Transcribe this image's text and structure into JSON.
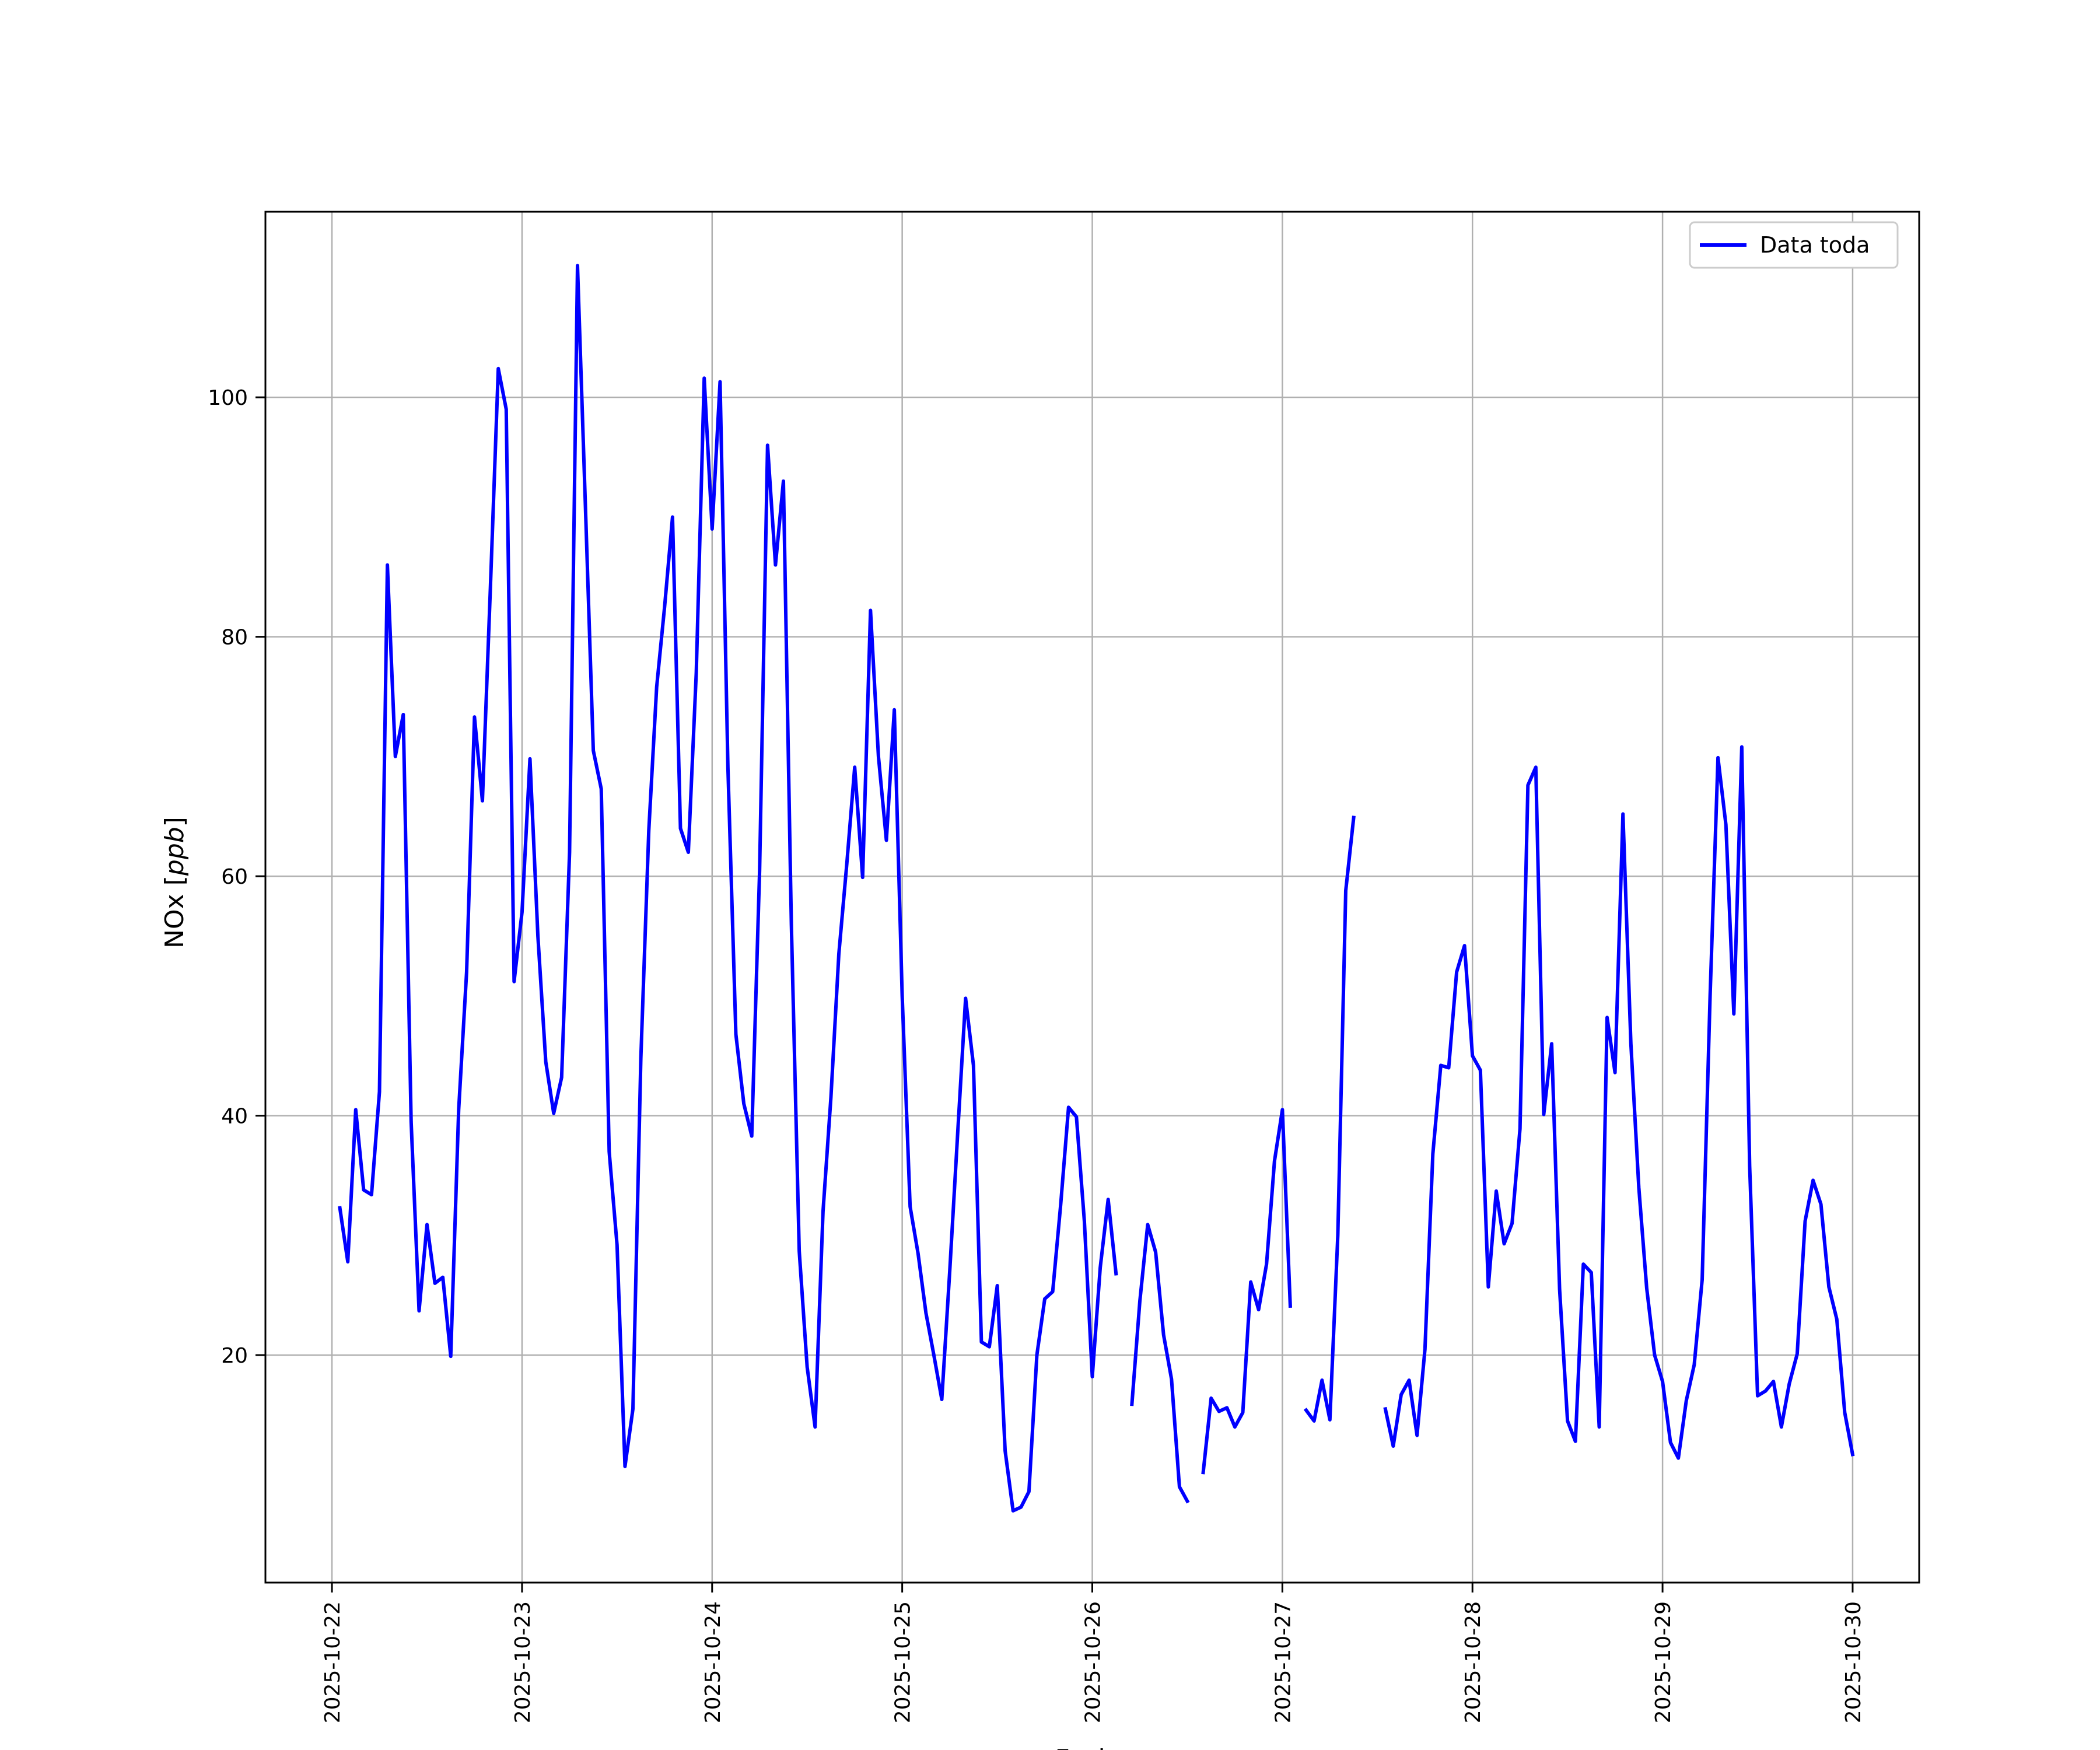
{
  "chart_data": {
    "type": "line",
    "xlabel": "Fecha",
    "ylabel": "NOx [ppb]",
    "ylabel_main": "NOx ",
    "ylabel_unit": "ppb",
    "xlim": [
      "2025-10-21 15:36",
      "2025-10-30 08:24"
    ],
    "ylim": [
      1,
      115.5
    ],
    "x_ticks": [
      "2025-10-22",
      "2025-10-23",
      "2025-10-24",
      "2025-10-25",
      "2025-10-26",
      "2025-10-27",
      "2025-10-28",
      "2025-10-29",
      "2025-10-30"
    ],
    "y_ticks": [
      20,
      40,
      60,
      80,
      100
    ],
    "y_tick_labels": [
      "20",
      "40",
      "60",
      "80",
      "100"
    ],
    "grid": true,
    "legend_position": "top-right",
    "series": [
      {
        "name": "Data toda",
        "color": "#0000ff",
        "segments": [
          [
            [
              "2025-10-22 01:00",
              32.3
            ],
            [
              "2025-10-22 02:00",
              27.8
            ],
            [
              "2025-10-22 03:00",
              40.5
            ],
            [
              "2025-10-22 04:00",
              33.8
            ],
            [
              "2025-10-22 05:00",
              33.4
            ],
            [
              "2025-10-22 06:00",
              42.0
            ],
            [
              "2025-10-22 07:00",
              86.0
            ],
            [
              "2025-10-22 08:00",
              70.0
            ],
            [
              "2025-10-22 09:00",
              73.5
            ],
            [
              "2025-10-22 10:00",
              39.5
            ],
            [
              "2025-10-22 11:00",
              23.7
            ],
            [
              "2025-10-22 12:00",
              30.9
            ],
            [
              "2025-10-22 13:00",
              26.0
            ],
            [
              "2025-10-22 14:00",
              26.5
            ],
            [
              "2025-10-22 15:00",
              19.9
            ],
            [
              "2025-10-22 16:00",
              40.5
            ],
            [
              "2025-10-22 17:00",
              52.0
            ],
            [
              "2025-10-22 18:00",
              73.3
            ],
            [
              "2025-10-22 19:00",
              66.3
            ],
            [
              "2025-10-22 20:00",
              84.0
            ],
            [
              "2025-10-22 21:00",
              102.4
            ],
            [
              "2025-10-22 22:00",
              99.0
            ],
            [
              "2025-10-22 23:00",
              51.2
            ],
            [
              "2025-10-23 00:00",
              57.0
            ],
            [
              "2025-10-23 01:00",
              69.8
            ],
            [
              "2025-10-23 02:00",
              55.0
            ],
            [
              "2025-10-23 03:00",
              44.5
            ],
            [
              "2025-10-23 04:00",
              40.2
            ],
            [
              "2025-10-23 05:00",
              43.2
            ],
            [
              "2025-10-23 06:00",
              62.0
            ],
            [
              "2025-10-23 07:00",
              111.0
            ],
            [
              "2025-10-23 08:00",
              91.0
            ],
            [
              "2025-10-23 09:00",
              70.5
            ],
            [
              "2025-10-23 10:00",
              67.3
            ],
            [
              "2025-10-23 11:00",
              37.0
            ],
            [
              "2025-10-23 12:00",
              29.2
            ],
            [
              "2025-10-23 13:00",
              10.7
            ],
            [
              "2025-10-23 14:00",
              15.5
            ],
            [
              "2025-10-23 15:00",
              44.8
            ],
            [
              "2025-10-23 16:00",
              63.8
            ],
            [
              "2025-10-23 17:00",
              75.8
            ],
            [
              "2025-10-23 18:00",
              82.5
            ],
            [
              "2025-10-23 19:00",
              90.0
            ],
            [
              "2025-10-23 20:00",
              64.0
            ],
            [
              "2025-10-23 21:00",
              62.0
            ],
            [
              "2025-10-23 22:00",
              77.0
            ],
            [
              "2025-10-23 23:00",
              101.6
            ],
            [
              "2025-10-24 00:00",
              89.0
            ],
            [
              "2025-10-24 01:00",
              101.3
            ],
            [
              "2025-10-24 02:00",
              69.0
            ],
            [
              "2025-10-24 03:00",
              46.8
            ],
            [
              "2025-10-24 04:00",
              41.0
            ],
            [
              "2025-10-24 05:00",
              38.3
            ],
            [
              "2025-10-24 06:00",
              60.5
            ],
            [
              "2025-10-24 07:00",
              96.0
            ],
            [
              "2025-10-24 08:00",
              86.0
            ],
            [
              "2025-10-24 09:00",
              93.0
            ],
            [
              "2025-10-24 10:00",
              56.0
            ],
            [
              "2025-10-24 11:00",
              28.7
            ],
            [
              "2025-10-24 12:00",
              19.0
            ],
            [
              "2025-10-24 13:00",
              14.0
            ],
            [
              "2025-10-24 14:00",
              32.0
            ],
            [
              "2025-10-24 15:00",
              41.5
            ],
            [
              "2025-10-24 16:00",
              53.5
            ],
            [
              "2025-10-24 17:00",
              61.0
            ],
            [
              "2025-10-24 18:00",
              69.1
            ],
            [
              "2025-10-24 19:00",
              59.9
            ],
            [
              "2025-10-24 20:00",
              82.2
            ],
            [
              "2025-10-24 21:00",
              70.0
            ],
            [
              "2025-10-24 22:00",
              63.0
            ],
            [
              "2025-10-24 23:00",
              73.9
            ],
            [
              "2025-10-25 00:00",
              50.0
            ],
            [
              "2025-10-25 01:00",
              32.4
            ],
            [
              "2025-10-25 02:00",
              28.5
            ],
            [
              "2025-10-25 03:00",
              23.5
            ],
            [
              "2025-10-25 04:00",
              20.0
            ],
            [
              "2025-10-25 05:00",
              16.3
            ],
            [
              "2025-10-25 06:00",
              27.0
            ],
            [
              "2025-10-25 07:00",
              38.5
            ],
            [
              "2025-10-25 08:00",
              49.8
            ],
            [
              "2025-10-25 09:00",
              44.2
            ],
            [
              "2025-10-25 10:00",
              21.1
            ],
            [
              "2025-10-25 11:00",
              20.7
            ],
            [
              "2025-10-25 12:00",
              25.8
            ],
            [
              "2025-10-25 13:00",
              12.0
            ],
            [
              "2025-10-25 14:00",
              7.0
            ],
            [
              "2025-10-25 15:00",
              7.3
            ],
            [
              "2025-10-25 16:00",
              8.6
            ],
            [
              "2025-10-25 17:00",
              20.0
            ],
            [
              "2025-10-25 18:00",
              24.7
            ],
            [
              "2025-10-25 19:00",
              25.3
            ],
            [
              "2025-10-25 20:00",
              32.5
            ],
            [
              "2025-10-25 21:00",
              40.7
            ],
            [
              "2025-10-25 22:00",
              39.9
            ],
            [
              "2025-10-25 23:00",
              31.2
            ],
            [
              "2025-10-26 00:00",
              18.2
            ],
            [
              "2025-10-26 01:00",
              27.3
            ],
            [
              "2025-10-26 02:00",
              33.0
            ],
            [
              "2025-10-26 03:00",
              26.8
            ]
          ],
          [
            [
              "2025-10-26 05:00",
              15.9
            ],
            [
              "2025-10-26 06:00",
              24.5
            ],
            [
              "2025-10-26 07:00",
              30.9
            ],
            [
              "2025-10-26 08:00",
              28.6
            ],
            [
              "2025-10-26 09:00",
              21.7
            ],
            [
              "2025-10-26 10:00",
              18.0
            ],
            [
              "2025-10-26 11:00",
              9.0
            ],
            [
              "2025-10-26 12:00",
              7.8
            ]
          ],
          [
            [
              "2025-10-26 14:00",
              10.2
            ],
            [
              "2025-10-26 15:00",
              16.4
            ],
            [
              "2025-10-26 16:00",
              15.3
            ],
            [
              "2025-10-26 17:00",
              15.6
            ],
            [
              "2025-10-26 18:00",
              14.0
            ],
            [
              "2025-10-26 19:00",
              15.2
            ],
            [
              "2025-10-26 20:00",
              26.1
            ],
            [
              "2025-10-26 21:00",
              23.8
            ],
            [
              "2025-10-26 22:00",
              27.6
            ],
            [
              "2025-10-26 23:00",
              36.2
            ],
            [
              "2025-10-27 00:00",
              40.5
            ],
            [
              "2025-10-27 01:00",
              24.1
            ]
          ],
          [
            [
              "2025-10-27 03:00",
              15.4
            ],
            [
              "2025-10-27 04:00",
              14.5
            ],
            [
              "2025-10-27 05:00",
              17.9
            ],
            [
              "2025-10-27 06:00",
              14.6
            ],
            [
              "2025-10-27 07:00",
              30.0
            ],
            [
              "2025-10-27 08:00",
              58.8
            ],
            [
              "2025-10-27 09:00",
              64.9
            ]
          ],
          [
            [
              "2025-10-27 13:00",
              15.5
            ],
            [
              "2025-10-27 14:00",
              12.4
            ],
            [
              "2025-10-27 15:00",
              16.7
            ],
            [
              "2025-10-27 16:00",
              17.9
            ],
            [
              "2025-10-27 17:00",
              13.3
            ],
            [
              "2025-10-27 18:00",
              20.5
            ],
            [
              "2025-10-27 19:00",
              36.8
            ],
            [
              "2025-10-27 20:00",
              44.2
            ],
            [
              "2025-10-27 21:00",
              44.0
            ],
            [
              "2025-10-27 22:00",
              52.0
            ],
            [
              "2025-10-27 23:00",
              54.2
            ],
            [
              "2025-10-28 00:00",
              45.0
            ],
            [
              "2025-10-28 01:00",
              43.8
            ],
            [
              "2025-10-28 02:00",
              25.7
            ],
            [
              "2025-10-28 03:00",
              33.7
            ],
            [
              "2025-10-28 04:00",
              29.3
            ],
            [
              "2025-10-28 05:00",
              31.0
            ],
            [
              "2025-10-28 06:00",
              38.9
            ],
            [
              "2025-10-28 07:00",
              67.6
            ],
            [
              "2025-10-28 08:00",
              69.1
            ],
            [
              "2025-10-28 09:00",
              40.1
            ],
            [
              "2025-10-28 10:00",
              46.0
            ],
            [
              "2025-10-28 11:00",
              25.5
            ],
            [
              "2025-10-28 12:00",
              14.5
            ],
            [
              "2025-10-28 13:00",
              12.8
            ],
            [
              "2025-10-28 14:00",
              27.6
            ],
            [
              "2025-10-28 15:00",
              26.9
            ],
            [
              "2025-10-28 16:00",
              14.0
            ],
            [
              "2025-10-28 17:00",
              48.2
            ],
            [
              "2025-10-28 18:00",
              43.6
            ],
            [
              "2025-10-28 19:00",
              65.2
            ],
            [
              "2025-10-28 20:00",
              46.0
            ],
            [
              "2025-10-28 21:00",
              34.0
            ],
            [
              "2025-10-28 22:00",
              25.6
            ],
            [
              "2025-10-28 23:00",
              20.0
            ],
            [
              "2025-10-29 00:00",
              17.8
            ],
            [
              "2025-10-29 01:00",
              12.7
            ],
            [
              "2025-10-29 02:00",
              11.4
            ],
            [
              "2025-10-29 03:00",
              16.2
            ],
            [
              "2025-10-29 04:00",
              19.2
            ],
            [
              "2025-10-29 05:00",
              26.3
            ],
            [
              "2025-10-29 06:00",
              50.0
            ],
            [
              "2025-10-29 07:00",
              69.9
            ],
            [
              "2025-10-29 08:00",
              64.3
            ],
            [
              "2025-10-29 09:00",
              48.5
            ],
            [
              "2025-10-29 10:00",
              70.8
            ],
            [
              "2025-10-29 11:00",
              35.8
            ],
            [
              "2025-10-29 12:00",
              16.6
            ],
            [
              "2025-10-29 13:00",
              17.0
            ],
            [
              "2025-10-29 14:00",
              17.8
            ],
            [
              "2025-10-29 15:00",
              14.0
            ],
            [
              "2025-10-29 16:00",
              17.6
            ],
            [
              "2025-10-29 17:00",
              20.1
            ],
            [
              "2025-10-29 18:00",
              31.2
            ],
            [
              "2025-10-29 19:00",
              34.6
            ],
            [
              "2025-10-29 20:00",
              32.6
            ],
            [
              "2025-10-29 21:00",
              25.7
            ],
            [
              "2025-10-29 22:00",
              23.0
            ],
            [
              "2025-10-29 23:00",
              15.2
            ],
            [
              "2025-10-30 00:00",
              11.7
            ]
          ]
        ]
      }
    ]
  }
}
